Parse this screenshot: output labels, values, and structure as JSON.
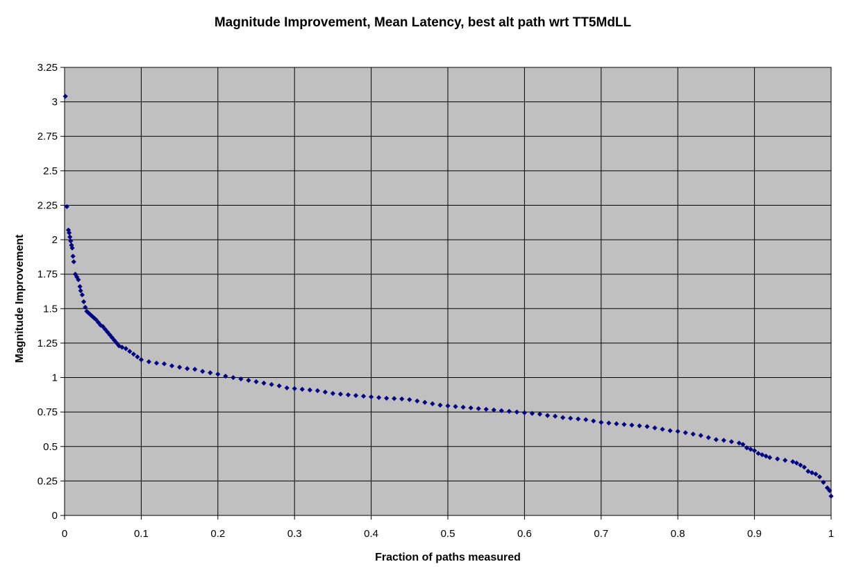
{
  "chart_data": {
    "type": "scatter",
    "title": "Magnitude Improvement, Mean Latency, best alt path wrt TT5MdLL",
    "xlabel": "Fraction of paths measured",
    "ylabel": "Magnitude Improvement",
    "xlim": [
      0,
      1
    ],
    "ylim": [
      0,
      3.25
    ],
    "x_ticks": [
      0,
      0.1,
      0.2,
      0.3,
      0.4,
      0.5,
      0.6,
      0.7,
      0.8,
      0.9,
      1
    ],
    "x_tick_labels": [
      "0",
      "0.1",
      "0.2",
      "0.3",
      "0.4",
      "0.5",
      "0.6",
      "0.7",
      "0.8",
      "0.9",
      "1"
    ],
    "y_ticks": [
      0,
      0.25,
      0.5,
      0.75,
      1,
      1.25,
      1.5,
      1.75,
      2,
      2.25,
      2.5,
      2.75,
      3,
      3.25
    ],
    "y_tick_labels": [
      "0",
      "0.25",
      "0.5",
      "0.75",
      "1",
      "1.25",
      "1.5",
      "1.75",
      "2",
      "2.25",
      "2.5",
      "2.75",
      "3",
      "3.25"
    ],
    "grid": true,
    "legend": "none",
    "colors": {
      "plot_background": "#C0C0C0",
      "grid": "#000000",
      "marker": "#000080"
    },
    "marker": "diamond",
    "series": [
      {
        "points": [
          [
            0.001,
            3.04
          ],
          [
            0.003,
            2.24
          ],
          [
            0.005,
            2.07
          ],
          [
            0.006,
            2.05
          ],
          [
            0.007,
            2.02
          ],
          [
            0.008,
            1.99
          ],
          [
            0.009,
            1.96
          ],
          [
            0.01,
            1.94
          ],
          [
            0.011,
            1.88
          ],
          [
            0.012,
            1.84
          ],
          [
            0.014,
            1.75
          ],
          [
            0.016,
            1.73
          ],
          [
            0.018,
            1.71
          ],
          [
            0.02,
            1.66
          ],
          [
            0.021,
            1.63
          ],
          [
            0.023,
            1.6
          ],
          [
            0.025,
            1.55
          ],
          [
            0.027,
            1.51
          ],
          [
            0.029,
            1.48
          ],
          [
            0.031,
            1.47
          ],
          [
            0.033,
            1.46
          ],
          [
            0.035,
            1.45
          ],
          [
            0.037,
            1.44
          ],
          [
            0.039,
            1.43
          ],
          [
            0.041,
            1.42
          ],
          [
            0.044,
            1.4
          ],
          [
            0.047,
            1.38
          ],
          [
            0.05,
            1.37
          ],
          [
            0.053,
            1.35
          ],
          [
            0.056,
            1.33
          ],
          [
            0.059,
            1.31
          ],
          [
            0.062,
            1.29
          ],
          [
            0.065,
            1.27
          ],
          [
            0.068,
            1.25
          ],
          [
            0.071,
            1.23
          ],
          [
            0.075,
            1.22
          ],
          [
            0.08,
            1.21
          ],
          [
            0.085,
            1.19
          ],
          [
            0.09,
            1.17
          ],
          [
            0.095,
            1.15
          ],
          [
            0.1,
            1.13
          ],
          [
            0.11,
            1.115
          ],
          [
            0.12,
            1.105
          ],
          [
            0.13,
            1.1
          ],
          [
            0.14,
            1.085
          ],
          [
            0.15,
            1.075
          ],
          [
            0.16,
            1.065
          ],
          [
            0.17,
            1.06
          ],
          [
            0.18,
            1.045
          ],
          [
            0.19,
            1.035
          ],
          [
            0.2,
            1.025
          ],
          [
            0.21,
            1.01
          ],
          [
            0.22,
            1.0
          ],
          [
            0.23,
            0.99
          ],
          [
            0.24,
            0.98
          ],
          [
            0.25,
            0.97
          ],
          [
            0.26,
            0.96
          ],
          [
            0.27,
            0.95
          ],
          [
            0.28,
            0.94
          ],
          [
            0.29,
            0.925
          ],
          [
            0.3,
            0.92
          ],
          [
            0.31,
            0.915
          ],
          [
            0.32,
            0.91
          ],
          [
            0.33,
            0.905
          ],
          [
            0.34,
            0.895
          ],
          [
            0.35,
            0.885
          ],
          [
            0.36,
            0.88
          ],
          [
            0.37,
            0.875
          ],
          [
            0.38,
            0.87
          ],
          [
            0.39,
            0.865
          ],
          [
            0.4,
            0.86
          ],
          [
            0.41,
            0.855
          ],
          [
            0.42,
            0.85
          ],
          [
            0.43,
            0.848
          ],
          [
            0.44,
            0.845
          ],
          [
            0.45,
            0.84
          ],
          [
            0.46,
            0.83
          ],
          [
            0.47,
            0.82
          ],
          [
            0.48,
            0.81
          ],
          [
            0.49,
            0.8
          ],
          [
            0.5,
            0.795
          ],
          [
            0.51,
            0.79
          ],
          [
            0.52,
            0.785
          ],
          [
            0.53,
            0.78
          ],
          [
            0.54,
            0.775
          ],
          [
            0.55,
            0.77
          ],
          [
            0.56,
            0.765
          ],
          [
            0.57,
            0.76
          ],
          [
            0.58,
            0.755
          ],
          [
            0.59,
            0.75
          ],
          [
            0.6,
            0.745
          ],
          [
            0.61,
            0.74
          ],
          [
            0.62,
            0.735
          ],
          [
            0.63,
            0.725
          ],
          [
            0.64,
            0.72
          ],
          [
            0.65,
            0.71
          ],
          [
            0.66,
            0.705
          ],
          [
            0.67,
            0.7
          ],
          [
            0.68,
            0.695
          ],
          [
            0.69,
            0.685
          ],
          [
            0.7,
            0.675
          ],
          [
            0.71,
            0.67
          ],
          [
            0.72,
            0.665
          ],
          [
            0.73,
            0.66
          ],
          [
            0.74,
            0.655
          ],
          [
            0.75,
            0.65
          ],
          [
            0.76,
            0.645
          ],
          [
            0.77,
            0.635
          ],
          [
            0.78,
            0.625
          ],
          [
            0.79,
            0.615
          ],
          [
            0.8,
            0.61
          ],
          [
            0.81,
            0.6
          ],
          [
            0.82,
            0.59
          ],
          [
            0.83,
            0.58
          ],
          [
            0.84,
            0.565
          ],
          [
            0.85,
            0.55
          ],
          [
            0.86,
            0.545
          ],
          [
            0.87,
            0.535
          ],
          [
            0.88,
            0.525
          ],
          [
            0.885,
            0.515
          ],
          [
            0.89,
            0.49
          ],
          [
            0.895,
            0.48
          ],
          [
            0.9,
            0.47
          ],
          [
            0.905,
            0.45
          ],
          [
            0.91,
            0.44
          ],
          [
            0.915,
            0.43
          ],
          [
            0.92,
            0.42
          ],
          [
            0.93,
            0.41
          ],
          [
            0.94,
            0.4
          ],
          [
            0.95,
            0.39
          ],
          [
            0.955,
            0.38
          ],
          [
            0.96,
            0.365
          ],
          [
            0.965,
            0.35
          ],
          [
            0.97,
            0.32
          ],
          [
            0.975,
            0.31
          ],
          [
            0.98,
            0.3
          ],
          [
            0.985,
            0.28
          ],
          [
            0.99,
            0.24
          ],
          [
            0.995,
            0.2
          ],
          [
            0.998,
            0.18
          ],
          [
            1.0,
            0.14
          ]
        ]
      }
    ]
  }
}
